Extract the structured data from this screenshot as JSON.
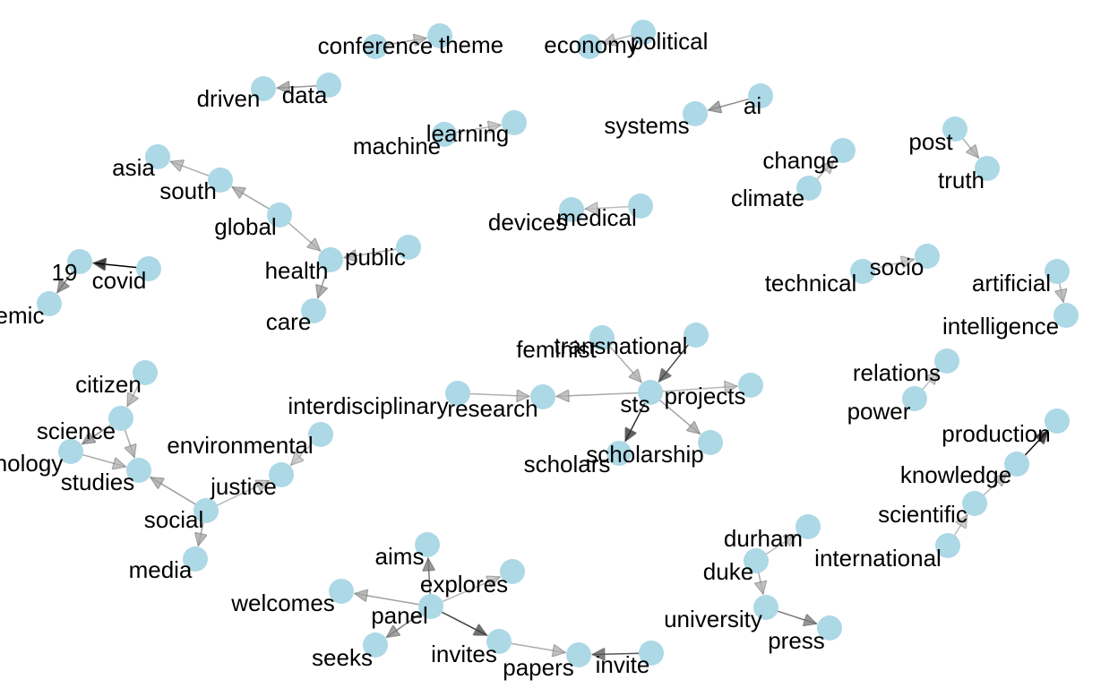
{
  "graph": {
    "node_color": "#add8e6",
    "nodes": [
      {
        "id": "n0",
        "label": "conference"
      },
      {
        "id": "n1",
        "label": "theme"
      },
      {
        "id": "n2",
        "label": "economy"
      },
      {
        "id": "n3",
        "label": "political"
      },
      {
        "id": "n4",
        "label": "driven"
      },
      {
        "id": "n5",
        "label": "data"
      },
      {
        "id": "n6",
        "label": "machine"
      },
      {
        "id": "n7",
        "label": "learning"
      },
      {
        "id": "n8",
        "label": "systems"
      },
      {
        "id": "n9",
        "label": "ai"
      },
      {
        "id": "n10",
        "label": "post"
      },
      {
        "id": "n11",
        "label": "truth"
      },
      {
        "id": "n12",
        "label": "change"
      },
      {
        "id": "n13",
        "label": "climate"
      },
      {
        "id": "n14",
        "label": "asia"
      },
      {
        "id": "n15",
        "label": "south"
      },
      {
        "id": "n16",
        "label": "global"
      },
      {
        "id": "n17",
        "label": "health"
      },
      {
        "id": "n18",
        "label": "public"
      },
      {
        "id": "n19",
        "label": "care"
      },
      {
        "id": "n20",
        "label": "devices"
      },
      {
        "id": "n21",
        "label": "medical"
      },
      {
        "id": "n22",
        "label": "19"
      },
      {
        "id": "n23",
        "label": "covid"
      },
      {
        "id": "n24",
        "label": "emic"
      },
      {
        "id": "n25",
        "label": "technical"
      },
      {
        "id": "n26",
        "label": "socio"
      },
      {
        "id": "n27",
        "label": "artificial"
      },
      {
        "id": "n28",
        "label": "intelligence"
      },
      {
        "id": "n29",
        "label": "feminist"
      },
      {
        "id": "n30",
        "label": "transnational"
      },
      {
        "id": "n31",
        "label": "interdisciplinary"
      },
      {
        "id": "n32",
        "label": "research"
      },
      {
        "id": "n33",
        "label": "sts"
      },
      {
        "id": "n34",
        "label": "projects"
      },
      {
        "id": "n35",
        "label": "scholars"
      },
      {
        "id": "n36",
        "label": "scholarship"
      },
      {
        "id": "n37",
        "label": "relations"
      },
      {
        "id": "n38",
        "label": "power"
      },
      {
        "id": "n39",
        "label": "citizen"
      },
      {
        "id": "n40",
        "label": "science"
      },
      {
        "id": "n41",
        "label": "nology"
      },
      {
        "id": "n42",
        "label": "studies"
      },
      {
        "id": "n43",
        "label": "environmental"
      },
      {
        "id": "n44",
        "label": "justice"
      },
      {
        "id": "n45",
        "label": "social"
      },
      {
        "id": "n46",
        "label": "media"
      },
      {
        "id": "n47",
        "label": "production"
      },
      {
        "id": "n48",
        "label": "knowledge"
      },
      {
        "id": "n49",
        "label": "scientific"
      },
      {
        "id": "n50",
        "label": "international"
      },
      {
        "id": "n51",
        "label": "durham"
      },
      {
        "id": "n52",
        "label": "duke"
      },
      {
        "id": "n53",
        "label": "university"
      },
      {
        "id": "n54",
        "label": "press"
      },
      {
        "id": "n55",
        "label": "aims"
      },
      {
        "id": "n56",
        "label": "explores"
      },
      {
        "id": "n57",
        "label": "welcomes"
      },
      {
        "id": "n58",
        "label": "panel"
      },
      {
        "id": "n59",
        "label": "seeks"
      },
      {
        "id": "n60",
        "label": "invites"
      },
      {
        "id": "n61",
        "label": "papers"
      },
      {
        "id": "n62",
        "label": "invite"
      }
    ],
    "edges": [
      {
        "from": "n0",
        "to": "n1",
        "strength": 0.2
      },
      {
        "from": "n3",
        "to": "n2",
        "strength": 0.15
      },
      {
        "from": "n5",
        "to": "n4",
        "strength": 0.3
      },
      {
        "from": "n6",
        "to": "n7",
        "strength": 0.15
      },
      {
        "from": "n9",
        "to": "n8",
        "strength": 0.35
      },
      {
        "from": "n10",
        "to": "n11",
        "strength": 0.2
      },
      {
        "from": "n13",
        "to": "n12",
        "strength": 0.15
      },
      {
        "from": "n15",
        "to": "n14",
        "strength": 0.2
      },
      {
        "from": "n16",
        "to": "n15",
        "strength": 0.25
      },
      {
        "from": "n16",
        "to": "n17",
        "strength": 0.2
      },
      {
        "from": "n18",
        "to": "n17",
        "strength": 0.2
      },
      {
        "from": "n17",
        "to": "n19",
        "strength": 0.3
      },
      {
        "from": "n21",
        "to": "n20",
        "strength": 0.12
      },
      {
        "from": "n23",
        "to": "n22",
        "strength": 1.0
      },
      {
        "from": "n22",
        "to": "n24",
        "strength": 0.45
      },
      {
        "from": "n25",
        "to": "n26",
        "strength": 0.12
      },
      {
        "from": "n27",
        "to": "n28",
        "strength": 0.2
      },
      {
        "from": "n29",
        "to": "n33",
        "strength": 0.2
      },
      {
        "from": "n30",
        "to": "n33",
        "strength": 0.65
      },
      {
        "from": "n31",
        "to": "n32",
        "strength": 0.18
      },
      {
        "from": "n33",
        "to": "n32",
        "strength": 0.2
      },
      {
        "from": "n33",
        "to": "n34",
        "strength": 0.15
      },
      {
        "from": "n33",
        "to": "n35",
        "strength": 0.8
      },
      {
        "from": "n33",
        "to": "n36",
        "strength": 0.25
      },
      {
        "from": "n38",
        "to": "n37",
        "strength": 0.12
      },
      {
        "from": "n39",
        "to": "n40",
        "strength": 0.2
      },
      {
        "from": "n40",
        "to": "n41",
        "strength": 0.35
      },
      {
        "from": "n40",
        "to": "n42",
        "strength": 0.2
      },
      {
        "from": "n41",
        "to": "n42",
        "strength": 0.2
      },
      {
        "from": "n45",
        "to": "n42",
        "strength": 0.25
      },
      {
        "from": "n43",
        "to": "n44",
        "strength": 0.12
      },
      {
        "from": "n45",
        "to": "n44",
        "strength": 0.15
      },
      {
        "from": "n45",
        "to": "n46",
        "strength": 0.25
      },
      {
        "from": "n48",
        "to": "n47",
        "strength": 0.95
      },
      {
        "from": "n49",
        "to": "n48",
        "strength": 0.15
      },
      {
        "from": "n50",
        "to": "n49",
        "strength": 0.12
      },
      {
        "from": "n52",
        "to": "n51",
        "strength": 0.12
      },
      {
        "from": "n52",
        "to": "n53",
        "strength": 0.2
      },
      {
        "from": "n53",
        "to": "n54",
        "strength": 0.45
      },
      {
        "from": "n58",
        "to": "n55",
        "strength": 0.45
      },
      {
        "from": "n58",
        "to": "n56",
        "strength": 0.15
      },
      {
        "from": "n58",
        "to": "n57",
        "strength": 0.25
      },
      {
        "from": "n58",
        "to": "n59",
        "strength": 0.4
      },
      {
        "from": "n58",
        "to": "n60",
        "strength": 0.7
      },
      {
        "from": "n60",
        "to": "n61",
        "strength": 0.2
      },
      {
        "from": "n62",
        "to": "n61",
        "strength": 0.6
      }
    ]
  }
}
